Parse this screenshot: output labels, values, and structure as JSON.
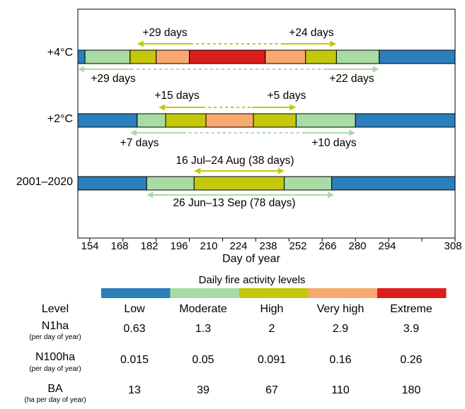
{
  "chart_data": {
    "type": "bar",
    "xlabel": "Day of year",
    "xlim": [
      149,
      308
    ],
    "xticks": [
      "154",
      "168",
      "182",
      "196",
      "210",
      "224",
      "238",
      "252",
      "266",
      "280",
      "294",
      "308"
    ],
    "rows": [
      {
        "label": "+4°C",
        "segments": [
          {
            "level": "Low",
            "start": 149,
            "end": 152
          },
          {
            "level": "Moderate",
            "start": 152,
            "end": 171
          },
          {
            "level": "High",
            "start": 171,
            "end": 182
          },
          {
            "level": "Very high",
            "start": 182,
            "end": 196
          },
          {
            "level": "Extreme",
            "start": 196,
            "end": 228
          },
          {
            "level": "Very high",
            "start": 228,
            "end": 245
          },
          {
            "level": "High",
            "start": 245,
            "end": 258
          },
          {
            "level": "Moderate",
            "start": 258,
            "end": 276
          },
          {
            "level": "Low",
            "start": 276,
            "end": 308
          }
        ],
        "annotations": {
          "upper_left": "+29 days",
          "upper_right": "+24 days",
          "lower_left": "+29 days",
          "lower_right": "+22 days"
        }
      },
      {
        "label": "+2°C",
        "segments": [
          {
            "level": "Low",
            "start": 149,
            "end": 174
          },
          {
            "level": "Moderate",
            "start": 174,
            "end": 186
          },
          {
            "level": "High",
            "start": 186,
            "end": 203
          },
          {
            "level": "Very high",
            "start": 203,
            "end": 223
          },
          {
            "level": "High",
            "start": 223,
            "end": 241
          },
          {
            "level": "Moderate",
            "start": 241,
            "end": 266
          },
          {
            "level": "Low",
            "start": 266,
            "end": 308
          }
        ],
        "annotations": {
          "upper_left": "+15 days",
          "upper_right": "+5 days",
          "lower_left": "+7 days",
          "lower_right": "+10 days"
        }
      },
      {
        "label": "2001–2020",
        "segments": [
          {
            "level": "Low",
            "start": 149,
            "end": 178
          },
          {
            "level": "Moderate",
            "start": 178,
            "end": 198
          },
          {
            "level": "High",
            "start": 198,
            "end": 236
          },
          {
            "level": "Moderate",
            "start": 236,
            "end": 256
          },
          {
            "level": "Low",
            "start": 256,
            "end": 308
          }
        ],
        "annotations": {
          "upper": "16 Jul–24 Aug (38 days)",
          "lower": "26 Jun–13 Sep (78 days)"
        }
      }
    ],
    "arrows": [
      {
        "row": 0,
        "pos": "upper",
        "from": 174,
        "to": 258,
        "color": "high"
      },
      {
        "row": 0,
        "pos": "lower",
        "from": 149,
        "to": 276,
        "color": "moderate"
      },
      {
        "row": 1,
        "pos": "upper",
        "from": 183,
        "to": 241,
        "color": "high"
      },
      {
        "row": 1,
        "pos": "lower",
        "from": 171,
        "to": 266,
        "color": "moderate"
      },
      {
        "row": 2,
        "pos": "upper",
        "from": 198,
        "to": 236,
        "color": "high"
      },
      {
        "row": 2,
        "pos": "lower",
        "from": 178,
        "to": 257,
        "color": "moderate"
      }
    ],
    "legend": {
      "title": "Daily fire activity levels",
      "levels": [
        "Low",
        "Moderate",
        "High",
        "Very high",
        "Extreme"
      ]
    },
    "colors": {
      "Low": "#2b7fbb",
      "Moderate": "#a9dca4",
      "High": "#c4c80a",
      "Very high": "#f9a870",
      "Extreme": "#dd1c1c",
      "high_annotation": "#c4c80a",
      "moderate_annotation": "#a9dca4"
    }
  },
  "table": {
    "header": "Level",
    "columns": [
      "Low",
      "Moderate",
      "High",
      "Very high",
      "Extreme"
    ],
    "rows": [
      {
        "metric": "N1ha",
        "unit": "(per day of year)",
        "values": [
          "0.63",
          "1.3",
          "2",
          "2.9",
          "3.9"
        ]
      },
      {
        "metric": "N100ha",
        "unit": "(per day of year)",
        "values": [
          "0.015",
          "0.05",
          "0.091",
          "0.16",
          "0.26"
        ]
      },
      {
        "metric": "BA",
        "unit": "(ha per day of year)",
        "values": [
          "13",
          "39",
          "67",
          "110",
          "180"
        ]
      }
    ]
  }
}
